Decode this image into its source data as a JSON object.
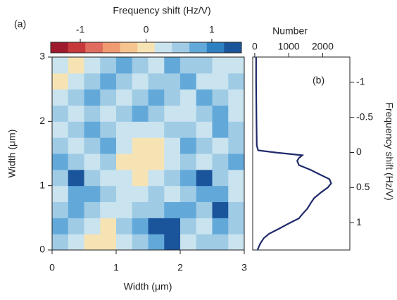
{
  "chart_data": [
    {
      "type": "heatmap",
      "panel_label": "(a)",
      "xlabel": "Width (μm)",
      "ylabel": "Width (μm)",
      "xlim": [
        0,
        3
      ],
      "ylim": [
        0,
        3
      ],
      "xticks": [
        0,
        1,
        2,
        3
      ],
      "yticks": [
        0,
        1,
        2,
        3
      ],
      "z": [
        [
          0.6,
          0.3,
          0.0,
          0.0,
          0.3,
          0.6,
          0.9,
          1.2,
          0.3,
          0.6,
          0.6,
          0.3
        ],
        [
          0.9,
          0.6,
          0.3,
          0.0,
          0.6,
          0.9,
          1.2,
          1.2,
          0.6,
          0.3,
          0.9,
          0.6
        ],
        [
          0.6,
          0.9,
          0.6,
          0.3,
          0.3,
          0.6,
          0.6,
          0.9,
          0.9,
          0.6,
          1.2,
          0.6
        ],
        [
          0.3,
          0.9,
          0.9,
          0.6,
          0.3,
          0.3,
          0.6,
          0.3,
          0.6,
          0.9,
          0.9,
          0.3
        ],
        [
          0.6,
          1.2,
          0.6,
          0.3,
          0.3,
          0.0,
          0.3,
          0.6,
          0.9,
          1.2,
          0.6,
          0.3
        ],
        [
          0.9,
          0.6,
          0.3,
          0.6,
          0.0,
          0.0,
          0.0,
          0.3,
          0.6,
          0.3,
          0.6,
          0.9
        ],
        [
          0.6,
          0.3,
          0.6,
          0.9,
          0.3,
          0.0,
          0.0,
          0.3,
          0.9,
          0.6,
          0.3,
          0.6
        ],
        [
          0.3,
          0.6,
          0.9,
          0.6,
          0.3,
          0.3,
          0.3,
          0.6,
          0.6,
          0.3,
          0.9,
          0.6
        ],
        [
          0.6,
          0.3,
          0.6,
          0.3,
          0.6,
          0.9,
          0.6,
          0.3,
          0.3,
          0.6,
          0.9,
          0.3
        ],
        [
          0.3,
          0.6,
          0.9,
          0.6,
          0.3,
          0.6,
          0.9,
          0.6,
          0.3,
          0.9,
          0.6,
          0.3
        ],
        [
          0.0,
          0.3,
          0.6,
          0.9,
          0.6,
          0.3,
          0.6,
          0.6,
          0.9,
          0.3,
          0.3,
          0.6
        ],
        [
          0.3,
          0.0,
          0.3,
          0.6,
          0.9,
          0.6,
          0.3,
          0.9,
          0.6,
          0.6,
          0.3,
          0.3
        ]
      ],
      "colorbar": {
        "label": "Frequency shift (Hz/V)",
        "lim": [
          -1.45,
          1.45
        ],
        "ticks": [
          -1,
          0,
          1
        ],
        "colors": [
          "#9e1a2e",
          "#c6383b",
          "#e06b5f",
          "#f09a72",
          "#f6c48f",
          "#f6e3b4",
          "#c9e3ef",
          "#9fcbe5",
          "#62a9da",
          "#2f80c2",
          "#1a559c"
        ]
      }
    },
    {
      "type": "line",
      "orientation": "horizontal",
      "panel_label": "(b)",
      "xlabel": "Number",
      "ylabel": "Frequency shift (Hz/V)",
      "xlim": [
        -60,
        2800
      ],
      "xticks": [
        0,
        1000,
        2000
      ],
      "ylim": [
        -1.36,
        1.39
      ],
      "yticks": [
        -1,
        -0.5,
        0,
        0.5,
        1
      ],
      "y_inverted": true,
      "color": "#1f2a6b",
      "x": [
        -1.36,
        -1.0,
        -0.5,
        -0.1,
        -0.03,
        0.0,
        0.04,
        0.08,
        0.12,
        0.18,
        0.25,
        0.31,
        0.38,
        0.44,
        0.5,
        0.57,
        0.65,
        0.72,
        0.8,
        0.88,
        0.94,
        1.0,
        1.09,
        1.16,
        1.22,
        1.3,
        1.39
      ],
      "values": [
        40,
        40,
        50,
        60,
        100,
        600,
        1400,
        1300,
        1250,
        1300,
        1650,
        1900,
        2200,
        2250,
        2150,
        1950,
        1750,
        1650,
        1550,
        1400,
        1300,
        1050,
        700,
        420,
        270,
        160,
        80
      ]
    }
  ]
}
